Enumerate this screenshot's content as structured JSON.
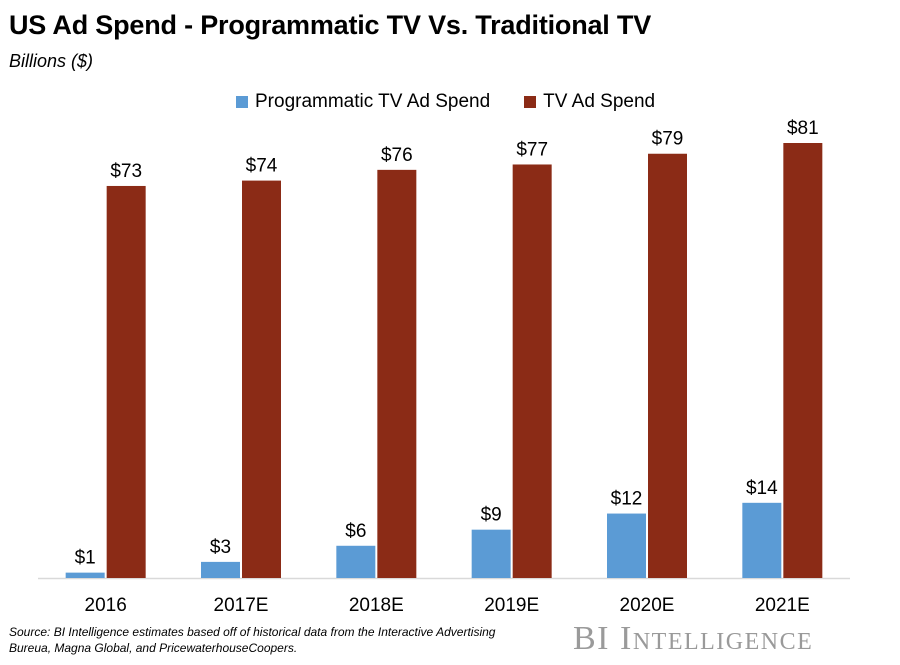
{
  "title": "US Ad Spend - Programmatic TV Vs. Traditional TV",
  "subtitle": "Billions ($)",
  "legend": {
    "programmatic": "Programmatic TV Ad Spend",
    "tv": "TV Ad Spend"
  },
  "source": "Source: BI Intelligence estimates based off of historical data from the Interactive Advertising Bureua, Magna Global, and PricewaterhouseCoopers.",
  "brand": "BI Intelligence",
  "colors": {
    "programmatic": "#5b9bd5",
    "tv": "#8b2b16",
    "axis": "#d9d9d9"
  },
  "chart_data": {
    "type": "bar",
    "categories": [
      "2016",
      "2017E",
      "2018E",
      "2019E",
      "2020E",
      "2021E"
    ],
    "series": [
      {
        "name": "Programmatic TV Ad Spend",
        "values": [
          1,
          3,
          6,
          9,
          12,
          14
        ],
        "labels": [
          "$1",
          "$3",
          "$6",
          "$9",
          "$12",
          "$14"
        ]
      },
      {
        "name": "TV Ad Spend",
        "values": [
          73,
          74,
          76,
          77,
          79,
          81
        ],
        "labels": [
          "$73",
          "$74",
          "$76",
          "$77",
          "$79",
          "$81"
        ]
      }
    ],
    "title": "US Ad Spend - Programmatic TV Vs. Traditional TV",
    "ylabel": "Billions ($)",
    "ylim": [
      0,
      81
    ],
    "grid": false,
    "legend_position": "top"
  }
}
